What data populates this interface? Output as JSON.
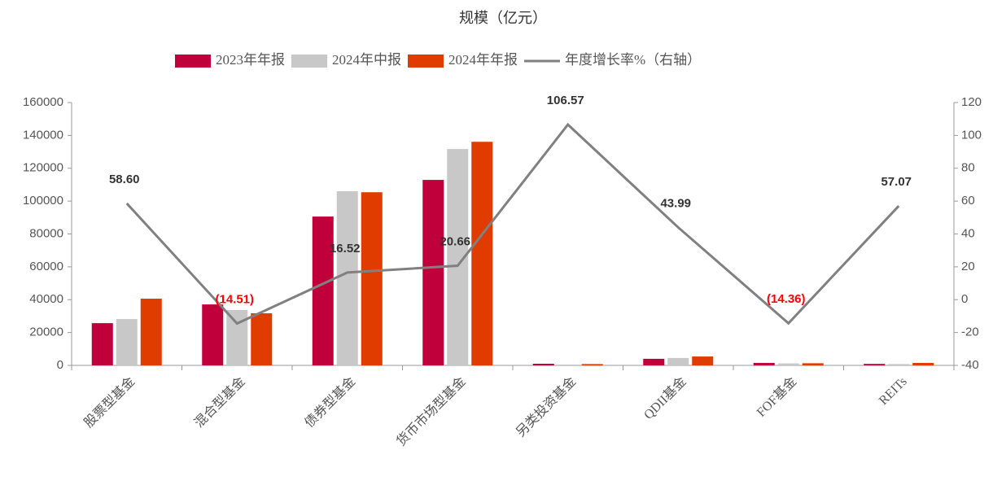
{
  "chart_data": {
    "type": "bar_line",
    "title": "规模（亿元）",
    "categories": [
      "股票型基金",
      "混合型基金",
      "债券型基金",
      "货币市场型基金",
      "另类投资基金",
      "QDII基金",
      "FOF基金",
      "REITs"
    ],
    "series": [
      {
        "name": "2023年年报",
        "color": "#c0003a",
        "type": "bar",
        "values": [
          25700,
          37100,
          90600,
          112900,
          1000,
          4000,
          1500,
          900
        ]
      },
      {
        "name": "2024年中报",
        "color": "#c8c8c8",
        "type": "bar",
        "values": [
          28200,
          33700,
          106000,
          131700,
          500,
          4500,
          1200,
          800
        ]
      },
      {
        "name": "2024年年报",
        "color": "#e03c00",
        "type": "bar",
        "values": [
          40600,
          31700,
          105400,
          136100,
          800,
          5400,
          1300,
          1500
        ]
      },
      {
        "name": "年度增长率%（右轴）",
        "color": "#808080",
        "type": "line",
        "axis": "y2",
        "values": [
          58.6,
          -14.51,
          16.52,
          20.66,
          106.57,
          43.99,
          -14.36,
          57.07
        ],
        "value_labels": [
          "58.60",
          "(14.51)",
          "16.52",
          "20.66",
          "106.57",
          "43.99",
          "(14.36)",
          "57.07"
        ]
      }
    ],
    "negative_label_color": "#ff0000",
    "ylim": [
      0,
      160000
    ],
    "yticks": [
      0,
      20000,
      40000,
      60000,
      80000,
      100000,
      120000,
      140000,
      160000
    ],
    "y2lim": [
      -40,
      120
    ],
    "y2ticks": [
      -40,
      -20,
      0,
      20,
      40,
      60,
      80,
      100,
      120
    ]
  }
}
